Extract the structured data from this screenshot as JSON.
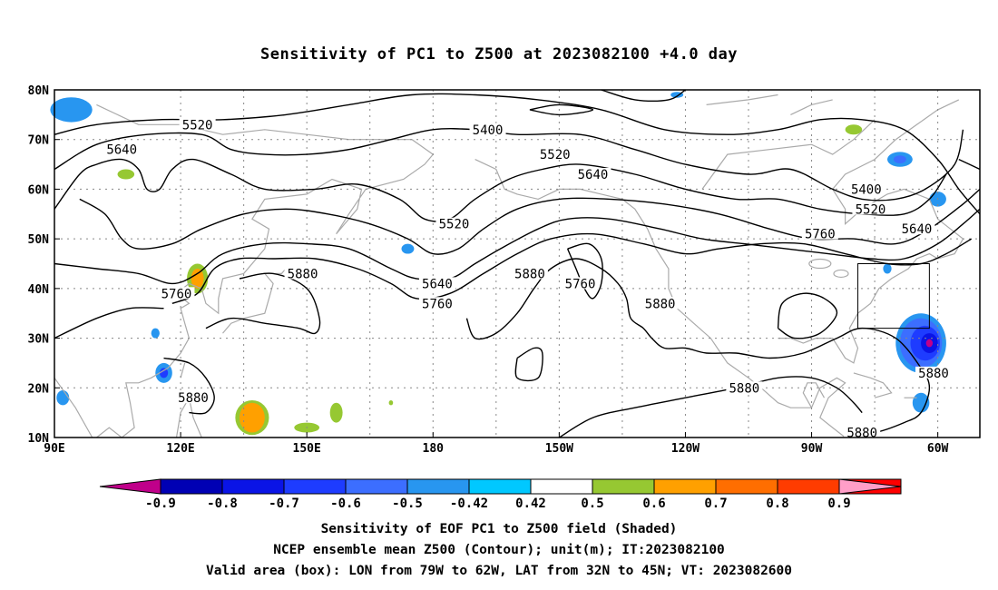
{
  "title": "Sensitivity of PC1 to Z500 at 2023082100 +4.0 day",
  "map": {
    "lat_labels": [
      "80N",
      "70N",
      "60N",
      "50N",
      "40N",
      "30N",
      "20N",
      "10N"
    ],
    "lon_labels": [
      "90E",
      "120E",
      "150E",
      "180",
      "150W",
      "120W",
      "90W",
      "60W"
    ],
    "extent": {
      "lon_min": 90,
      "lon_max": 310,
      "lat_min": 10,
      "lat_max": 80
    },
    "valid_box": {
      "lon_west": "79W",
      "lon_east": "62W",
      "lat_south": "32N",
      "lat_north": "45N"
    },
    "contour_labels": [
      {
        "text": "5520",
        "lon": 124,
        "lat": 73
      },
      {
        "text": "5640",
        "lon": 106,
        "lat": 68
      },
      {
        "text": "5400",
        "lon": 193,
        "lat": 72
      },
      {
        "text": "5520",
        "lon": 209,
        "lat": 67
      },
      {
        "text": "5640",
        "lon": 218,
        "lat": 63
      },
      {
        "text": "5400",
        "lon": 283,
        "lat": 60
      },
      {
        "text": "5520",
        "lon": 284,
        "lat": 56
      },
      {
        "text": "5640",
        "lon": 295,
        "lat": 52
      },
      {
        "text": "5760",
        "lon": 272,
        "lat": 51
      },
      {
        "text": "5520",
        "lon": 185,
        "lat": 53
      },
      {
        "text": "5640",
        "lon": 181,
        "lat": 41
      },
      {
        "text": "5760",
        "lon": 181,
        "lat": 37
      },
      {
        "text": "5880",
        "lon": 203,
        "lat": 43
      },
      {
        "text": "5760",
        "lon": 215,
        "lat": 41
      },
      {
        "text": "5880",
        "lon": 149,
        "lat": 43
      },
      {
        "text": "5760",
        "lon": 119,
        "lat": 39
      },
      {
        "text": "5880",
        "lon": 234,
        "lat": 37
      },
      {
        "text": "5880",
        "lon": 123,
        "lat": 18
      },
      {
        "text": "5880",
        "lon": 254,
        "lat": 20
      },
      {
        "text": "5880",
        "lon": 299,
        "lat": 23
      },
      {
        "text": "5880",
        "lon": 282,
        "lat": 11
      }
    ],
    "shaded_areas": [
      {
        "lon": 94,
        "lat": 76,
        "rx": 5,
        "ry": 2.5,
        "level": "-0.5"
      },
      {
        "lon": 107,
        "lat": 63,
        "rx": 2,
        "ry": 1,
        "level": "0.5"
      },
      {
        "lon": 124,
        "lat": 42,
        "rx": 2.5,
        "ry": 3,
        "level": "0.5"
      },
      {
        "lon": 124,
        "lat": 42,
        "rx": 1.5,
        "ry": 2,
        "level": "0.6"
      },
      {
        "lon": 114,
        "lat": 31,
        "rx": 1,
        "ry": 1,
        "level": "-0.5"
      },
      {
        "lon": 116,
        "lat": 23,
        "rx": 2,
        "ry": 2,
        "level": "-0.5"
      },
      {
        "lon": 116,
        "lat": 23,
        "rx": 1,
        "ry": 1,
        "level": "-0.7"
      },
      {
        "lon": 92,
        "lat": 18,
        "rx": 1.5,
        "ry": 1.5,
        "level": "-0.5"
      },
      {
        "lon": 137,
        "lat": 14,
        "rx": 4,
        "ry": 3.5,
        "level": "0.5"
      },
      {
        "lon": 137,
        "lat": 14,
        "rx": 3,
        "ry": 3,
        "level": "0.6"
      },
      {
        "lon": 150,
        "lat": 12,
        "rx": 3,
        "ry": 1,
        "level": "0.5"
      },
      {
        "lon": 157,
        "lat": 15,
        "rx": 1.5,
        "ry": 2,
        "level": "0.5"
      },
      {
        "lon": 174,
        "lat": 48,
        "rx": 1.5,
        "ry": 1,
        "level": "-0.5"
      },
      {
        "lon": 238,
        "lat": 79,
        "rx": 1.5,
        "ry": 0.6,
        "level": "-0.5"
      },
      {
        "lon": 280,
        "lat": 72,
        "rx": 2,
        "ry": 1,
        "level": "0.5"
      },
      {
        "lon": 291,
        "lat": 66,
        "rx": 3,
        "ry": 1.5,
        "level": "-0.5"
      },
      {
        "lon": 291,
        "lat": 66,
        "rx": 1.5,
        "ry": 0.8,
        "level": "-0.6"
      },
      {
        "lon": 300,
        "lat": 58,
        "rx": 2,
        "ry": 1.5,
        "level": "-0.5"
      },
      {
        "lon": 296,
        "lat": 29,
        "rx": 6,
        "ry": 6,
        "level": "-0.5"
      },
      {
        "lon": 296,
        "lat": 29,
        "rx": 5,
        "ry": 5,
        "level": "-0.6"
      },
      {
        "lon": 297,
        "lat": 29,
        "rx": 3.5,
        "ry": 3.5,
        "level": "-0.7"
      },
      {
        "lon": 298,
        "lat": 29,
        "rx": 2,
        "ry": 2,
        "level": "-0.8"
      },
      {
        "lon": 298,
        "lat": 29,
        "rx": 0.8,
        "ry": 0.8,
        "level": "-0.9"
      },
      {
        "lon": 296,
        "lat": 17,
        "rx": 2,
        "ry": 2,
        "level": "-0.5"
      },
      {
        "lon": 288,
        "lat": 44,
        "rx": 1,
        "ry": 1,
        "level": "-0.5"
      },
      {
        "lon": 170,
        "lat": 17,
        "rx": 0.5,
        "ry": 0.5,
        "level": "0.5"
      }
    ]
  },
  "colorbar": {
    "labels": [
      "-0.9",
      "-0.8",
      "-0.7",
      "-0.6",
      "-0.5",
      "-0.42",
      "0.42",
      "0.5",
      "0.6",
      "0.7",
      "0.8",
      "0.9"
    ],
    "low_color": "#c0008a",
    "high_color": "#ff9ec8",
    "colors": [
      "#0000b4",
      "#0a14e6",
      "#1e3cff",
      "#3c6eff",
      "#2896f0",
      "#00c8ff",
      "#ffffff",
      "#96c832",
      "#ffa000",
      "#ff6e00",
      "#ff3c00",
      "#ff0000"
    ]
  },
  "captions": {
    "line1": "Sensitivity of EOF PC1 to Z500 field (Shaded)",
    "line2": "NCEP ensemble mean Z500 (Contour); unit(m); IT:2023082100",
    "line3": "Valid area (box): LON from 79W to 62W, LAT from 32N to 45N; VT: 2023082600"
  }
}
